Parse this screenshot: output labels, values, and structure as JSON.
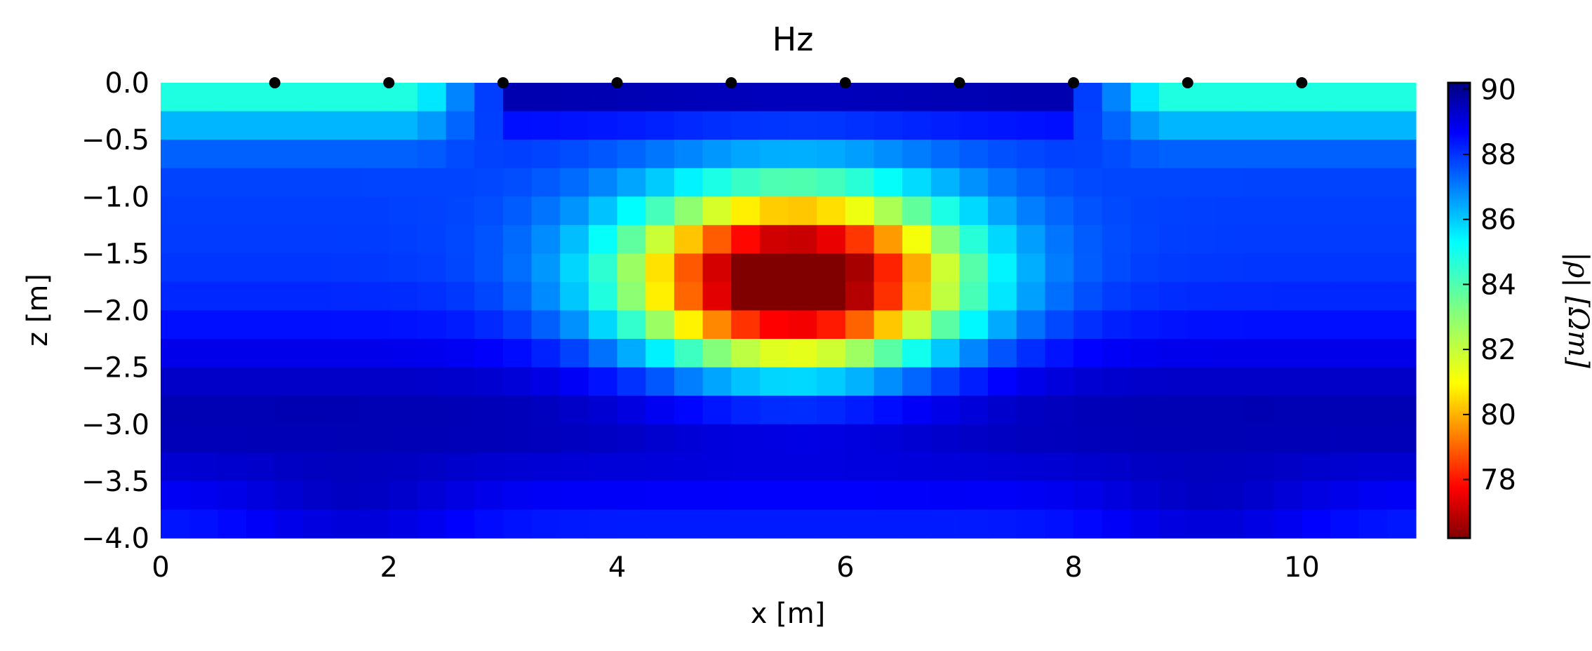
{
  "chart_data": {
    "type": "heatmap",
    "title": "Hz",
    "xlabel": "x [m]",
    "ylabel": "z [m]",
    "colorbar_label": "|ρ| [Ωm]",
    "colormap": "jet",
    "xlim": [
      0,
      11
    ],
    "ylim": [
      -4.0,
      0.0
    ],
    "clim": [
      76.2,
      90.2
    ],
    "x_ticks": [
      "0",
      "2",
      "4",
      "6",
      "8",
      "10"
    ],
    "y_ticks": [
      "0.0",
      "−0.5",
      "−1.0",
      "−1.5",
      "−2.0",
      "−2.5",
      "−3.0",
      "−3.5",
      "−4.0"
    ],
    "colorbar_ticks": [
      "78",
      "80",
      "82",
      "84",
      "86",
      "88",
      "90"
    ],
    "grid": false,
    "electrodes": {
      "x": [
        1,
        2,
        3,
        4,
        5,
        6,
        7,
        8,
        9,
        10
      ],
      "z": [
        0,
        0,
        0,
        0,
        0,
        0,
        0,
        0,
        0,
        0
      ]
    },
    "cell_x_edges": [
      0,
      0.25,
      0.5,
      0.75,
      1.0,
      1.25,
      1.5,
      1.75,
      2.0,
      2.25,
      2.5,
      2.75,
      3.0,
      3.25,
      3.5,
      3.75,
      4.0,
      4.25,
      4.5,
      4.75,
      5.0,
      5.25,
      5.5,
      5.75,
      6.0,
      6.25,
      6.5,
      6.75,
      7.0,
      7.25,
      7.5,
      7.75,
      8.0,
      8.25,
      8.5,
      8.75,
      9.0,
      9.25,
      9.5,
      9.75,
      10.0,
      10.25,
      10.5,
      10.75,
      11.0
    ],
    "cell_z_edges": [
      0.0,
      -0.25,
      -0.5,
      -0.75,
      -1.0,
      -1.25,
      -1.5,
      -1.75,
      -2.0,
      -2.25,
      -2.5,
      -2.75,
      -3.0,
      -3.25,
      -3.5,
      -3.75,
      -4.0
    ]
  }
}
